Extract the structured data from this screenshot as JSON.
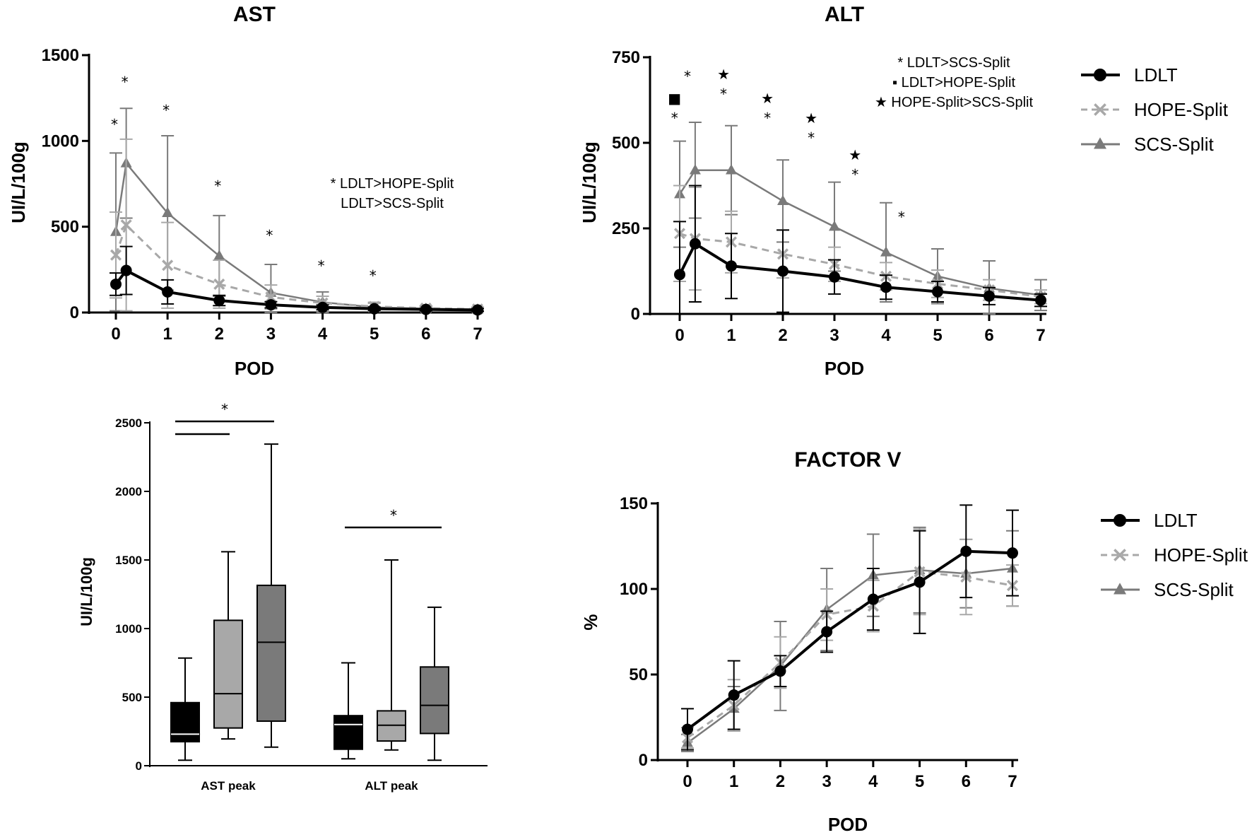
{
  "colors": {
    "LDLT": "#000000",
    "HOPE-Split": "#a8a8a8",
    "SCS-Split": "#7a7a7a",
    "box_fills": [
      "#000000",
      "#a8a8a8",
      "#7a7a7a"
    ]
  },
  "chart_data": [
    {
      "type": "line",
      "title": "AST",
      "xlabel": "POD",
      "ylabel": "UI/L/100g",
      "ylim": [
        0,
        1500
      ],
      "yticks": [
        "0",
        "500",
        "1000",
        "1500"
      ],
      "xticks": [
        "0",
        "1",
        "2",
        "3",
        "4",
        "5",
        "6",
        "7"
      ],
      "x": [
        0,
        0.2,
        1,
        2,
        3,
        4,
        5,
        6,
        7
      ],
      "series": [
        {
          "name": "LDLT",
          "marker": "circle",
          "style": "solid",
          "values": [
            165,
            245,
            120,
            70,
            45,
            30,
            22,
            18,
            15
          ],
          "errors": [
            65,
            140,
            70,
            30,
            18,
            14,
            10,
            8,
            7
          ]
        },
        {
          "name": "HOPE-Split",
          "marker": "cross",
          "style": "dashed",
          "values": [
            335,
            510,
            275,
            165,
            90,
            55,
            35,
            25,
            20
          ],
          "errors": [
            250,
            500,
            250,
            140,
            70,
            40,
            25,
            15,
            12
          ]
        },
        {
          "name": "SCS-Split",
          "marker": "triangle",
          "style": "solid",
          "values": [
            470,
            870,
            580,
            330,
            115,
            60,
            30,
            22,
            18
          ],
          "errors": [
            460,
            320,
            450,
            235,
            165,
            60,
            25,
            15,
            12
          ]
        }
      ],
      "significance": {
        "marks": [
          {
            "x": 0,
            "text": "*"
          },
          {
            "x": 0.2,
            "text": "*"
          },
          {
            "x": 1,
            "text": "*"
          },
          {
            "x": 2,
            "text": "*"
          },
          {
            "x": 3,
            "text": "*"
          },
          {
            "x": 4,
            "text": "*"
          },
          {
            "x": 5,
            "text": "*"
          }
        ],
        "note_lines": [
          "* LDLT>HOPE-Split",
          "LDLT>SCS-Split"
        ]
      }
    },
    {
      "type": "line",
      "title": "ALT",
      "xlabel": "POD",
      "ylabel": "UI/L/100g",
      "ylim": [
        0,
        750
      ],
      "yticks": [
        "0",
        "250",
        "500",
        "750"
      ],
      "xticks": [
        "0",
        "1",
        "2",
        "3",
        "4",
        "5",
        "6",
        "7"
      ],
      "x": [
        0,
        0.3,
        1,
        2,
        3,
        4,
        5,
        6,
        7
      ],
      "series": [
        {
          "name": "LDLT",
          "marker": "circle",
          "style": "solid",
          "values": [
            115,
            205,
            140,
            125,
            108,
            78,
            65,
            52,
            40
          ],
          "errors": [
            155,
            170,
            95,
            120,
            50,
            35,
            30,
            25,
            18
          ]
        },
        {
          "name": "HOPE-Split",
          "marker": "cross",
          "style": "dashed",
          "values": [
            235,
            220,
            210,
            175,
            145,
            110,
            88,
            70,
            50
          ],
          "errors": [
            140,
            150,
            90,
            70,
            50,
            40,
            40,
            30,
            20
          ]
        },
        {
          "name": "SCS-Split",
          "marker": "triangle",
          "style": "solid",
          "values": [
            350,
            420,
            420,
            330,
            255,
            180,
            110,
            75,
            55
          ],
          "errors": [
            155,
            140,
            130,
            120,
            130,
            145,
            80,
            80,
            45
          ]
        }
      ],
      "significance": {
        "marks": [
          {
            "x": -0.1,
            "symbols": [
              "■",
              "*"
            ]
          },
          {
            "x": 0.15,
            "symbols": [
              "*"
            ]
          },
          {
            "x": 0.85,
            "symbols": [
              "★",
              "*"
            ]
          },
          {
            "x": 1.7,
            "symbols": [
              "★",
              "*"
            ]
          },
          {
            "x": 2.55,
            "symbols": [
              "★",
              "*"
            ]
          },
          {
            "x": 3.4,
            "symbols": [
              "★",
              "*"
            ]
          },
          {
            "x": 4.3,
            "symbols": [
              "*"
            ]
          }
        ],
        "note_lines": [
          "* LDLT>SCS-Split",
          "▪ LDLT>HOPE-Split",
          "★  HOPE-Split>SCS-Split"
        ]
      },
      "legend": [
        "LDLT",
        "HOPE-Split",
        "SCS-Split"
      ]
    },
    {
      "type": "box",
      "title": "",
      "xlabel": "",
      "ylabel": "UI/L/100g",
      "ylim": [
        0,
        2500
      ],
      "yticks": [
        "0",
        "500",
        "1000",
        "1500",
        "2000",
        "2500"
      ],
      "groups": [
        "AST peak",
        "ALT peak"
      ],
      "boxes": [
        {
          "group": "AST peak",
          "series": "LDLT",
          "min": 40,
          "q1": 175,
          "median": 230,
          "q3": 460,
          "max": 785
        },
        {
          "group": "AST peak",
          "series": "HOPE-Split",
          "min": 195,
          "q1": 275,
          "median": 525,
          "q3": 1060,
          "max": 1560
        },
        {
          "group": "AST peak",
          "series": "SCS-Split",
          "min": 135,
          "q1": 325,
          "median": 900,
          "q3": 1315,
          "max": 2345
        },
        {
          "group": "ALT peak",
          "series": "LDLT",
          "min": 50,
          "q1": 120,
          "median": 300,
          "q3": 365,
          "max": 750
        },
        {
          "group": "ALT peak",
          "series": "HOPE-Split",
          "min": 115,
          "q1": 180,
          "median": 295,
          "q3": 400,
          "max": 1500
        },
        {
          "group": "ALT peak",
          "series": "SCS-Split",
          "min": 40,
          "q1": 235,
          "median": 440,
          "q3": 720,
          "max": 1155
        }
      ],
      "significance_text": "*"
    },
    {
      "type": "line",
      "title": "FACTOR V",
      "xlabel": "POD",
      "ylabel": "%",
      "ylim": [
        0,
        150
      ],
      "yticks": [
        "0",
        "50",
        "100",
        "150"
      ],
      "xticks": [
        "0",
        "1",
        "2",
        "3",
        "4",
        "5",
        "6",
        "7"
      ],
      "x": [
        0,
        1,
        2,
        3,
        4,
        5,
        6,
        7
      ],
      "series": [
        {
          "name": "LDLT",
          "marker": "circle",
          "style": "solid",
          "values": [
            18,
            38,
            52,
            75,
            94,
            104,
            122,
            121
          ],
          "errors": [
            12,
            20,
            9,
            12,
            18,
            30,
            27,
            25
          ]
        },
        {
          "name": "HOPE-Split",
          "marker": "cross",
          "style": "dashed",
          "values": [
            13,
            32,
            57,
            85,
            90,
            110,
            107,
            102
          ],
          "errors": [
            6,
            15,
            15,
            15,
            15,
            25,
            22,
            12
          ]
        },
        {
          "name": "SCS-Split",
          "marker": "triangle",
          "style": "solid",
          "values": [
            10,
            30,
            55,
            88,
            108,
            111,
            109,
            112
          ],
          "errors": [
            5,
            13,
            26,
            24,
            24,
            25,
            20,
            22
          ]
        }
      ],
      "legend": [
        "LDLT",
        "HOPE-Split",
        "SCS-Split"
      ]
    }
  ]
}
